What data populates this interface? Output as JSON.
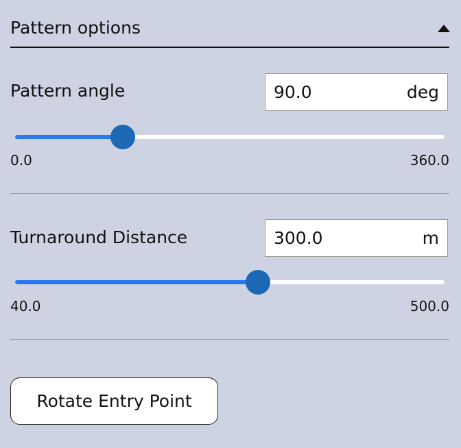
{
  "section": {
    "title": "Pattern options",
    "collapse_icon": "caret-up-icon"
  },
  "pattern_angle": {
    "label": "Pattern angle",
    "value": "90.0",
    "unit": "deg",
    "min": "0.0",
    "max": "360.0",
    "slider_value": 90,
    "slider_min": 0,
    "slider_max": 360
  },
  "turnaround": {
    "label": "Turnaround Distance",
    "value": "300.0",
    "unit": "m",
    "min": "40.0",
    "max": "500.0",
    "slider_value": 300,
    "slider_min": 40,
    "slider_max": 500
  },
  "rotate_button": "Rotate Entry Point",
  "colors": {
    "accent": "#2a78f0",
    "thumb": "#1c68b4",
    "background": "#cdd3e2"
  }
}
